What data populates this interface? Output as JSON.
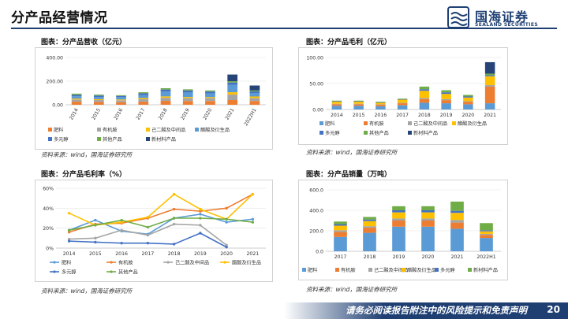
{
  "page": {
    "title": "分产品经营情况",
    "logo_name": "国海证券",
    "logo_sub": "SEALAND SECURITIES",
    "disclaimer": "请务必阅读报告附注中的风险提示和免责声明",
    "page_number": "20",
    "brand_color": "#1f3f73"
  },
  "panels": [
    {
      "title": "图表：分产品营收（亿元）",
      "source": "资料来源：wind，国海证券研究所"
    },
    {
      "title": "图表：分产品毛利（亿元）",
      "source": "资料来源：wind，国海证券研究所"
    },
    {
      "title": "图表：分产品毛利率（%）",
      "source": "资料来源：wind，国海证券研究所"
    },
    {
      "title": "图表：分产品销量（万吨）",
      "source": "资料来源：wind，国海证券研究所"
    }
  ],
  "chart_data": [
    {
      "type": "bar",
      "stacked": true,
      "categories": [
        "2014",
        "2015",
        "2016",
        "2017",
        "2018",
        "2019",
        "2020",
        "2021",
        "2022H1"
      ],
      "ylim": [
        0,
        400
      ],
      "yticks": [
        "0.00",
        "200.00",
        "400.00"
      ],
      "legend_position": "bottom",
      "series": [
        {
          "name": "肥料",
          "color": "#ed7d31",
          "values": [
            26,
            24,
            22,
            26,
            33,
            32,
            32,
            40,
            32
          ]
        },
        {
          "name": "有机胺",
          "color": "#a5a5a5",
          "values": [
            18,
            16,
            16,
            21,
            26,
            24,
            24,
            46,
            24
          ]
        },
        {
          "name": "己二酸及中间品",
          "color": "#ffc000",
          "values": [
            8,
            7,
            7,
            10,
            12,
            10,
            9,
            20,
            14
          ]
        },
        {
          "name": "醋酸及衍生品",
          "color": "#5b9bd5",
          "values": [
            20,
            18,
            20,
            26,
            40,
            38,
            32,
            62,
            30
          ]
        },
        {
          "name": "多元醇",
          "color": "#4472c4",
          "values": [
            12,
            13,
            10,
            14,
            18,
            17,
            15,
            20,
            13
          ]
        },
        {
          "name": "其他产品",
          "color": "#70ad47",
          "values": [
            10,
            8,
            6,
            9,
            11,
            10,
            9,
            11,
            8
          ]
        },
        {
          "name": "新材料产品",
          "color": "#264478",
          "values": [
            0,
            0,
            0,
            0,
            0,
            0,
            0,
            57,
            42
          ]
        }
      ]
    },
    {
      "type": "bar",
      "stacked": true,
      "categories": [
        "2014",
        "2015",
        "2016",
        "2017",
        "2018",
        "2019",
        "2020",
        "2021"
      ],
      "ylim": [
        0,
        100
      ],
      "yticks": [
        "0.00",
        "50.00",
        "100.00"
      ],
      "legend_position": "bottom",
      "series": [
        {
          "name": "肥料",
          "color": "#5b9bd5",
          "values": [
            7,
            7,
            6,
            8,
            13,
            12,
            10,
            12
          ]
        },
        {
          "name": "有机胺",
          "color": "#ed7d31",
          "values": [
            3,
            3,
            3,
            4,
            7,
            6,
            5,
            32
          ]
        },
        {
          "name": "己二酸及中间品",
          "color": "#a5a5a5",
          "values": [
            1,
            1,
            1,
            1,
            2,
            2,
            1,
            3
          ]
        },
        {
          "name": "醋酸及衍生品",
          "color": "#ffc000",
          "values": [
            4,
            4,
            3,
            6,
            14,
            10,
            7,
            17
          ]
        },
        {
          "name": "多元醇",
          "color": "#4472c4",
          "values": [
            1,
            1,
            1,
            1,
            3,
            3,
            2,
            2
          ]
        },
        {
          "name": "其他产品",
          "color": "#70ad47",
          "values": [
            1,
            1,
            1,
            1,
            5,
            4,
            3,
            3
          ]
        },
        {
          "name": "新材料产品",
          "color": "#264478",
          "values": [
            0,
            0,
            0,
            0,
            0,
            0,
            0,
            22
          ]
        }
      ]
    },
    {
      "type": "line",
      "categories": [
        "2014",
        "2015",
        "2016",
        "2017",
        "2018",
        "2019",
        "2020",
        "2021"
      ],
      "ylim": [
        0,
        60
      ],
      "yticks": [
        "0%",
        "20%",
        "40%",
        "60%"
      ],
      "legend_position": "bottom",
      "series": [
        {
          "name": "肥料",
          "color": "#5b9bd5",
          "values": [
            18,
            28,
            17,
            14,
            30,
            34,
            26,
            29
          ]
        },
        {
          "name": "有机胺",
          "color": "#ed7d31",
          "values": [
            16,
            24,
            25,
            30,
            39,
            37,
            40,
            54
          ]
        },
        {
          "name": "己二酸及中间品",
          "color": "#a5a5a5",
          "values": [
            9,
            10,
            18,
            13,
            24,
            23,
            3,
            null
          ]
        },
        {
          "name": "醋酸及衍生品",
          "color": "#ffc000",
          "values": [
            35,
            23,
            26,
            31,
            54,
            39,
            29,
            54
          ]
        },
        {
          "name": "多元醇",
          "color": "#4472c4",
          "values": [
            7,
            6,
            5,
            5,
            4,
            15,
            1,
            null
          ]
        },
        {
          "name": "其他产品",
          "color": "#70ad47",
          "values": [
            18,
            23,
            28,
            21,
            30,
            30,
            29,
            26
          ]
        }
      ]
    },
    {
      "type": "bar",
      "stacked": true,
      "categories": [
        "2017",
        "2018",
        "2019",
        "2020",
        "2021",
        "2022H1"
      ],
      "ylim": [
        0,
        600
      ],
      "yticks": [
        "0.0",
        "200.0",
        "400.0",
        "600.0"
      ],
      "legend_position": "bottom",
      "series": [
        {
          "name": "肥料",
          "color": "#5b9bd5",
          "values": [
            140,
            180,
            240,
            240,
            220,
            130
          ]
        },
        {
          "name": "有机胺",
          "color": "#ed7d31",
          "values": [
            50,
            50,
            60,
            60,
            60,
            30
          ]
        },
        {
          "name": "己二酸及中间品",
          "color": "#a5a5a5",
          "values": [
            15,
            15,
            20,
            20,
            25,
            10
          ]
        },
        {
          "name": "醋酸及衍生品",
          "color": "#ffc000",
          "values": [
            45,
            50,
            60,
            60,
            70,
            25
          ]
        },
        {
          "name": "多元醇",
          "color": "#4472c4",
          "values": [
            15,
            15,
            20,
            20,
            20,
            10
          ]
        },
        {
          "name": "新材料产品",
          "color": "#70ad47",
          "values": [
            25,
            25,
            40,
            40,
            90,
            70
          ]
        }
      ]
    }
  ]
}
